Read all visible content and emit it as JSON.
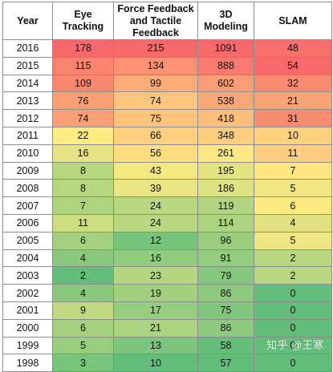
{
  "table": {
    "headers": [
      "Year",
      "Eye Tracking",
      "Force Feedback and Tactile Feedback",
      "3D Modeling",
      "SLAM"
    ],
    "rows": [
      [
        "2016",
        "178",
        "215",
        "1091",
        "48"
      ],
      [
        "2015",
        "115",
        "134",
        "888",
        "54"
      ],
      [
        "2014",
        "109",
        "99",
        "602",
        "32"
      ],
      [
        "2013",
        "76",
        "74",
        "538",
        "21"
      ],
      [
        "2012",
        "74",
        "75",
        "418",
        "31"
      ],
      [
        "2011",
        "22",
        "66",
        "348",
        "10"
      ],
      [
        "2010",
        "16",
        "56",
        "261",
        "11"
      ],
      [
        "2009",
        "8",
        "43",
        "195",
        "7"
      ],
      [
        "2008",
        "8",
        "39",
        "186",
        "5"
      ],
      [
        "2007",
        "7",
        "24",
        "119",
        "6"
      ],
      [
        "2006",
        "11",
        "24",
        "114",
        "4"
      ],
      [
        "2005",
        "6",
        "12",
        "96",
        "5"
      ],
      [
        "2004",
        "4",
        "16",
        "91",
        "2"
      ],
      [
        "2003",
        "2",
        "23",
        "79",
        "2"
      ],
      [
        "2002",
        "4",
        "19",
        "86",
        "0"
      ],
      [
        "2001",
        "9",
        "17",
        "75",
        "0"
      ],
      [
        "2000",
        "6",
        "21",
        "86",
        "0"
      ],
      [
        "1999",
        "5",
        "13",
        "58",
        "0"
      ],
      [
        "1998",
        "3",
        "10",
        "57",
        "0"
      ]
    ]
  },
  "heat_scale": {
    "low": "#63be7b",
    "mid": "#ffeb84",
    "high": "#f8696b"
  },
  "watermark": "知乎 @王寒"
}
